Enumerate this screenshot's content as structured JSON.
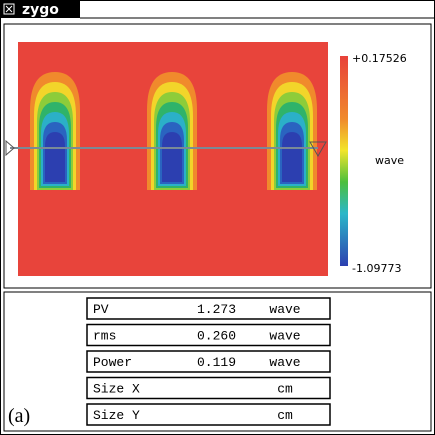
{
  "window": {
    "title": "zygo"
  },
  "colorbar": {
    "max": "+0.17526",
    "unit": "wave",
    "min": "-1.09773"
  },
  "table": {
    "rows": [
      {
        "label": "PV",
        "value": "1.273",
        "unit": "wave"
      },
      {
        "label": "rms",
        "value": "0.260",
        "unit": "wave"
      },
      {
        "label": "Power",
        "value": "0.119",
        "unit": "wave"
      },
      {
        "label": "Size X",
        "unit": "cm"
      },
      {
        "label": "Size Y",
        "unit": "cm"
      }
    ]
  },
  "figure_label": "(a)"
}
